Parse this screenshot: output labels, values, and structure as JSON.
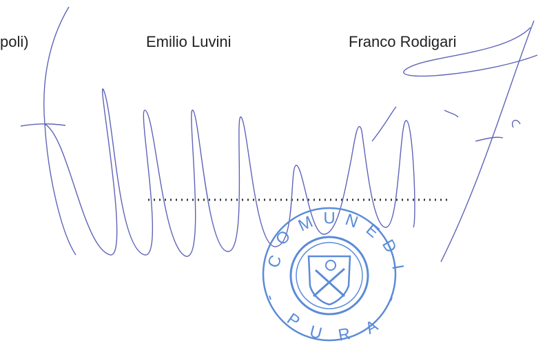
{
  "header": {
    "names": [
      "poli)",
      "Emilio Luvini",
      "Franco Rodigari"
    ]
  },
  "stamp": {
    "letters": [
      "C",
      "O",
      "M",
      "U",
      "N",
      "E",
      "D",
      "I",
      "-",
      "P",
      "U",
      "R",
      "A",
      "-"
    ]
  }
}
